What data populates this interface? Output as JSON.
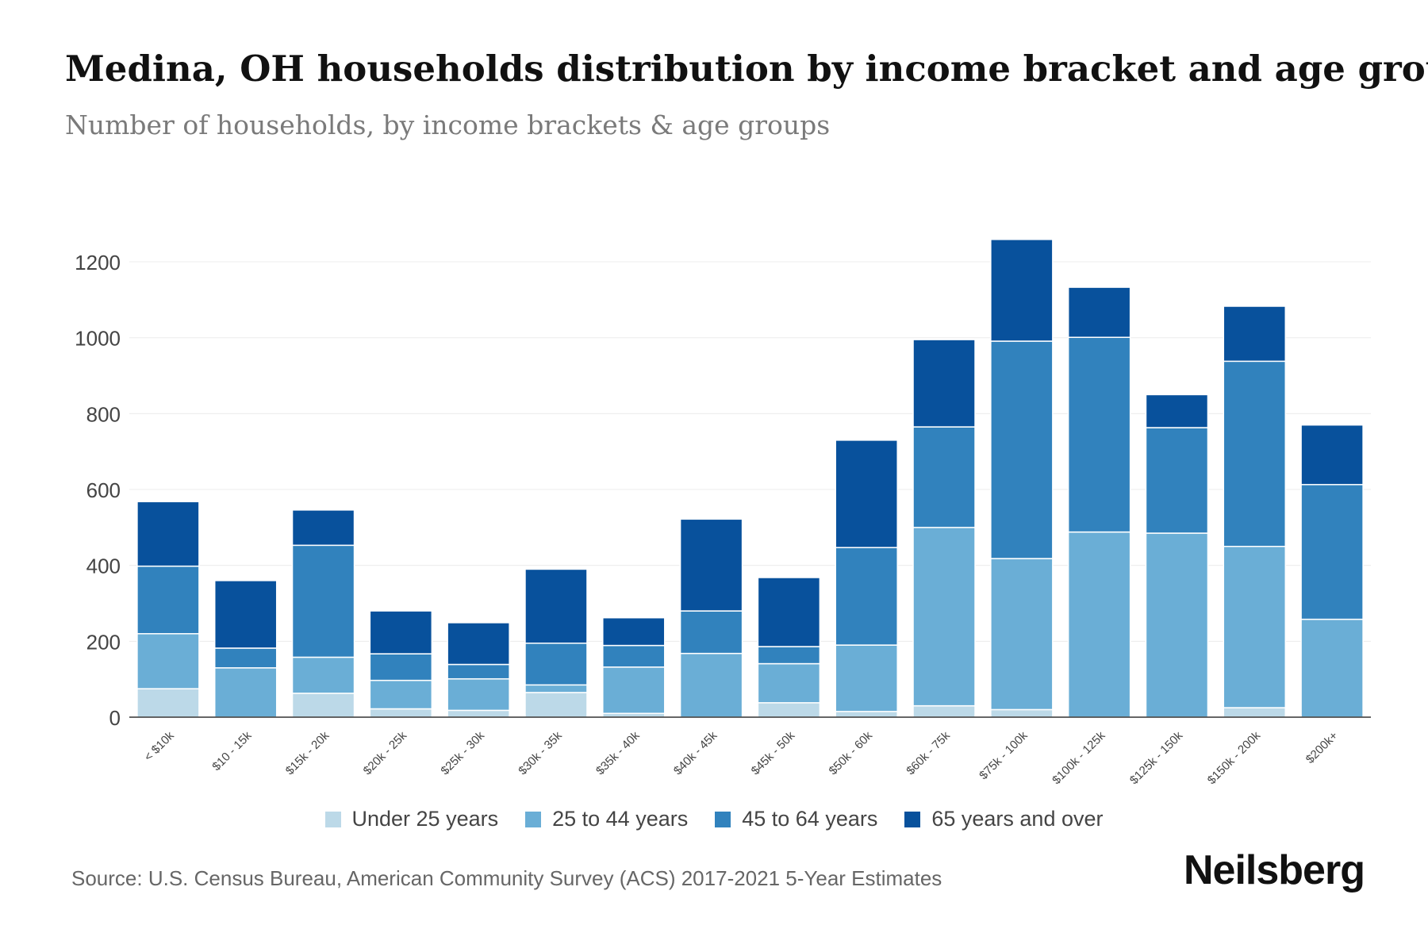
{
  "title": "Medina, OH households distribution by income bracket and age group",
  "subtitle": "Number of households, by income brackets & age groups",
  "source": "Source: U.S. Census Bureau, American Community Survey (ACS) 2017-2021 5-Year Estimates",
  "brand": "Neilsberg",
  "chart_data": {
    "type": "bar",
    "stacked": true,
    "title": "Medina, OH households distribution by income bracket and age group",
    "subtitle": "Number of households, by income brackets & age groups",
    "xlabel": "",
    "ylabel": "",
    "ylim": [
      0,
      1300
    ],
    "yticks": [
      0,
      200,
      400,
      600,
      800,
      1000,
      1200
    ],
    "grid": true,
    "legend_position": "bottom",
    "categories": [
      "< $10k",
      "$10 - 15k",
      "$15k - 20k",
      "$20k - 25k",
      "$25k - 30k",
      "$30k - 35k",
      "$35k - 40k",
      "$40k - 45k",
      "$45k - 50k",
      "$50k - 60k",
      "$60k - 75k",
      "$75k - 100k",
      "$100k - 125k",
      "$125k - 150k",
      "$150k - 200k",
      "$200k+"
    ],
    "series": [
      {
        "name": "Under 25 years",
        "color": "#bcd9e8",
        "values": [
          75,
          0,
          63,
          22,
          18,
          65,
          10,
          0,
          38,
          15,
          30,
          20,
          0,
          0,
          25,
          0
        ]
      },
      {
        "name": "25 to 44 years",
        "color": "#6aaed6",
        "values": [
          145,
          130,
          95,
          75,
          83,
          20,
          122,
          168,
          103,
          175,
          470,
          398,
          488,
          485,
          425,
          258
        ]
      },
      {
        "name": "45 to 64 years",
        "color": "#3182bd",
        "values": [
          178,
          52,
          295,
          70,
          38,
          110,
          57,
          112,
          45,
          257,
          265,
          573,
          513,
          278,
          488,
          355
        ]
      },
      {
        "name": "65 years and over",
        "color": "#08519c",
        "values": [
          170,
          178,
          93,
          113,
          110,
          195,
          73,
          242,
          182,
          283,
          230,
          268,
          132,
          87,
          145,
          157
        ]
      }
    ]
  }
}
